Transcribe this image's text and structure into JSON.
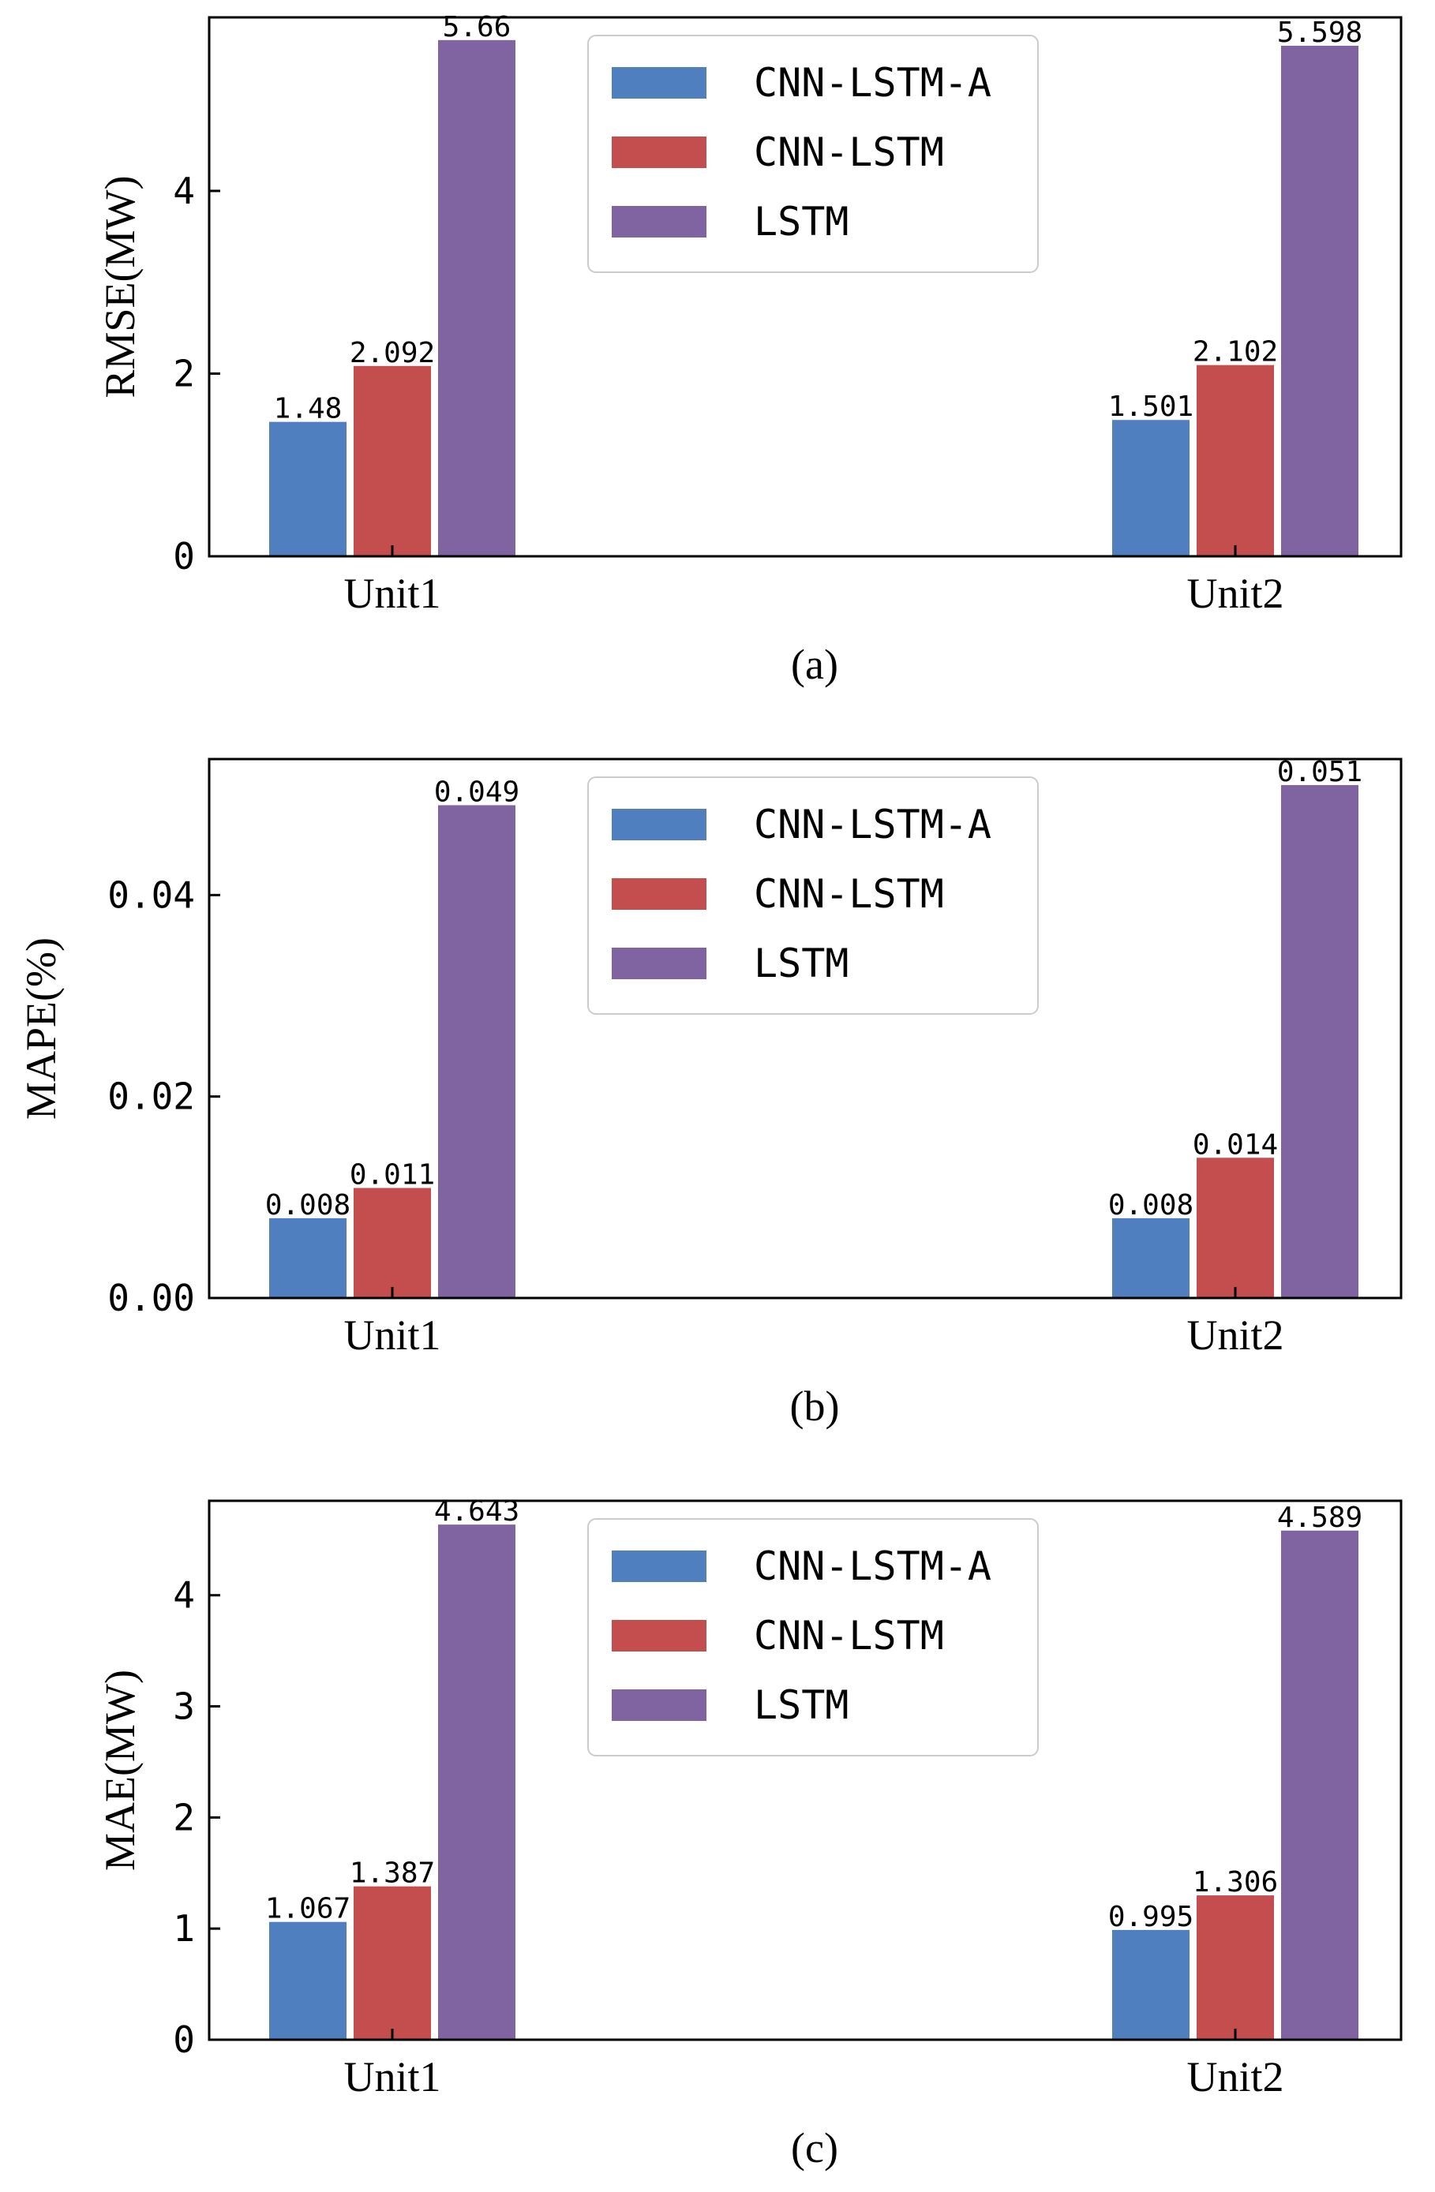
{
  "chart_data": [
    {
      "type": "bar",
      "panel_label": "(a)",
      "ylabel": "RMSE(MW)",
      "categories": [
        "Unit1",
        "Unit2"
      ],
      "series": [
        {
          "name": "CNN-LSTM-A",
          "color": "#4f7fbe",
          "values": [
            1.48,
            1.501
          ],
          "labels": [
            "1.48",
            "1.501"
          ]
        },
        {
          "name": "CNN-LSTM",
          "color": "#c44e4e",
          "values": [
            2.092,
            2.102
          ],
          "labels": [
            "2.092",
            "2.102"
          ]
        },
        {
          "name": "LSTM",
          "color": "#8064a2",
          "values": [
            5.66,
            5.598
          ],
          "labels": [
            "5.66",
            "5.598"
          ]
        }
      ],
      "ylim": [
        0,
        5.9
      ],
      "yticks": [
        0,
        2,
        4
      ],
      "ytick_labels": [
        "0",
        "2",
        "4"
      ],
      "legend": "upper-center"
    },
    {
      "type": "bar",
      "panel_label": "(b)",
      "ylabel": "MAPE(%)",
      "categories": [
        "Unit1",
        "Unit2"
      ],
      "series": [
        {
          "name": "CNN-LSTM-A",
          "color": "#4f7fbe",
          "values": [
            0.008,
            0.008
          ],
          "labels": [
            "0.008",
            "0.008"
          ]
        },
        {
          "name": "CNN-LSTM",
          "color": "#c44e4e",
          "values": [
            0.011,
            0.014
          ],
          "labels": [
            "0.011",
            "0.014"
          ]
        },
        {
          "name": "LSTM",
          "color": "#8064a2",
          "values": [
            0.049,
            0.051
          ],
          "labels": [
            "0.049",
            "0.051"
          ]
        }
      ],
      "ylim": [
        0,
        0.0535
      ],
      "yticks": [
        0,
        0.02,
        0.04
      ],
      "ytick_labels": [
        "0.00",
        "0.02",
        "0.04"
      ],
      "legend": "upper-center"
    },
    {
      "type": "bar",
      "panel_label": "(c)",
      "ylabel": "MAE(MW)",
      "categories": [
        "Unit1",
        "Unit2"
      ],
      "series": [
        {
          "name": "CNN-LSTM-A",
          "color": "#4f7fbe",
          "values": [
            1.067,
            0.995
          ],
          "labels": [
            "1.067",
            "0.995"
          ]
        },
        {
          "name": "CNN-LSTM",
          "color": "#c44e4e",
          "values": [
            1.387,
            1.306
          ],
          "labels": [
            "1.387",
            "1.306"
          ]
        },
        {
          "name": "LSTM",
          "color": "#8064a2",
          "values": [
            4.643,
            4.589
          ],
          "labels": [
            "4.643",
            "4.589"
          ]
        }
      ],
      "ylim": [
        0,
        4.85
      ],
      "yticks": [
        0,
        1,
        2,
        3,
        4
      ],
      "ytick_labels": [
        "0",
        "1",
        "2",
        "3",
        "4"
      ],
      "legend": "upper-center"
    }
  ]
}
